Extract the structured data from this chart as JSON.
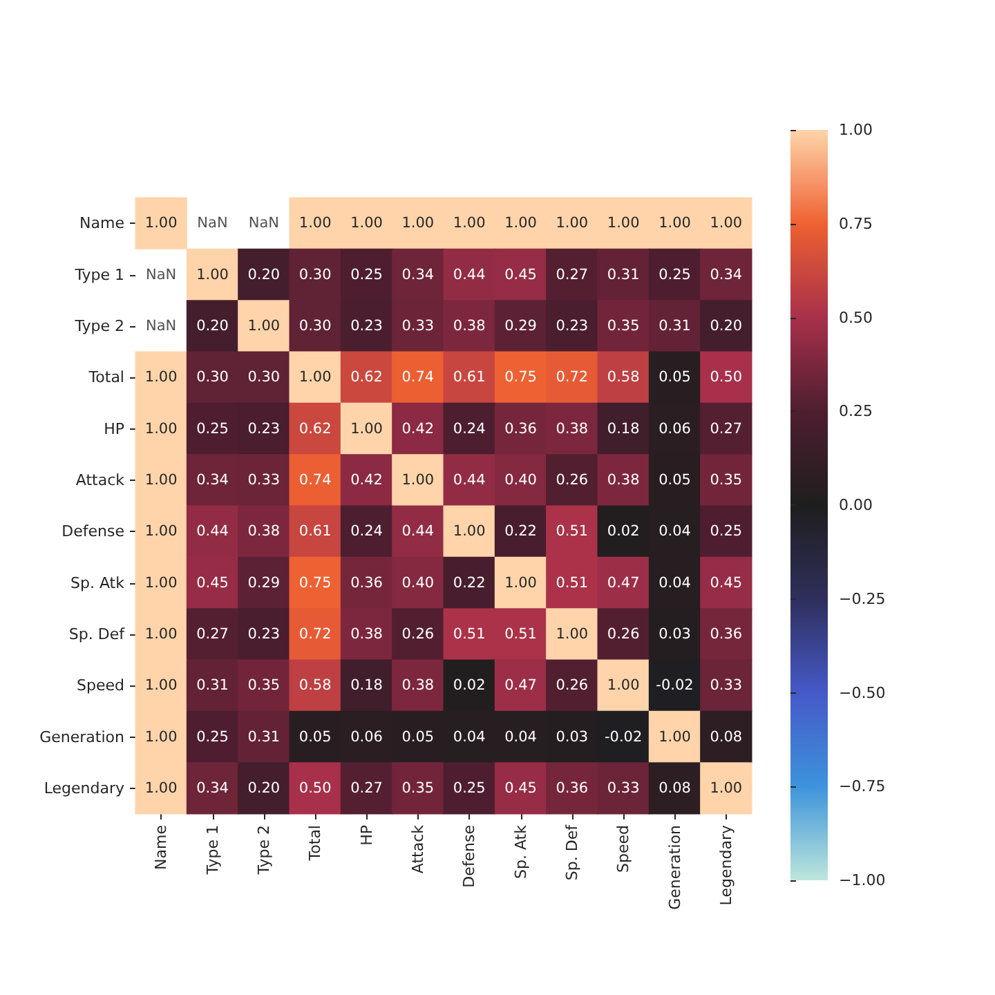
{
  "chart_data": {
    "type": "heatmap",
    "categories": [
      "Name",
      "Type 1",
      "Type 2",
      "Total",
      "HP",
      "Attack",
      "Defense",
      "Sp. Atk",
      "Sp. Def",
      "Speed",
      "Generation",
      "Legendary"
    ],
    "y_categories": [
      "Name",
      "Type 1",
      "Type 2",
      "Total",
      "HP",
      "Attack",
      "Defense",
      "Sp. Atk",
      "Sp. Def",
      "Speed",
      "Generation",
      "Legendary"
    ],
    "cells": [
      [
        1.0,
        null,
        null,
        1.0,
        1.0,
        1.0,
        1.0,
        1.0,
        1.0,
        1.0,
        1.0,
        1.0
      ],
      [
        null,
        1.0,
        0.2,
        0.3,
        0.25,
        0.34,
        0.44,
        0.45,
        0.27,
        0.31,
        0.25,
        0.34
      ],
      [
        null,
        0.2,
        1.0,
        0.3,
        0.23,
        0.33,
        0.38,
        0.29,
        0.23,
        0.35,
        0.31,
        0.2
      ],
      [
        1.0,
        0.3,
        0.3,
        1.0,
        0.62,
        0.74,
        0.61,
        0.75,
        0.72,
        0.58,
        0.05,
        0.5
      ],
      [
        1.0,
        0.25,
        0.23,
        0.62,
        1.0,
        0.42,
        0.24,
        0.36,
        0.38,
        0.18,
        0.06,
        0.27
      ],
      [
        1.0,
        0.34,
        0.33,
        0.74,
        0.42,
        1.0,
        0.44,
        0.4,
        0.26,
        0.38,
        0.05,
        0.35
      ],
      [
        1.0,
        0.44,
        0.38,
        0.61,
        0.24,
        0.44,
        1.0,
        0.22,
        0.51,
        0.02,
        0.04,
        0.25
      ],
      [
        1.0,
        0.45,
        0.29,
        0.75,
        0.36,
        0.4,
        0.22,
        1.0,
        0.51,
        0.47,
        0.04,
        0.45
      ],
      [
        1.0,
        0.27,
        0.23,
        0.72,
        0.38,
        0.26,
        0.51,
        0.51,
        1.0,
        0.26,
        0.03,
        0.36
      ],
      [
        1.0,
        0.31,
        0.35,
        0.58,
        0.18,
        0.38,
        0.02,
        0.47,
        0.26,
        1.0,
        -0.02,
        0.33
      ],
      [
        1.0,
        0.25,
        0.31,
        0.05,
        0.06,
        0.05,
        0.04,
        0.04,
        0.03,
        -0.02,
        1.0,
        0.08
      ],
      [
        1.0,
        0.34,
        0.2,
        0.5,
        0.27,
        0.35,
        0.25,
        0.45,
        0.36,
        0.33,
        0.08,
        1.0
      ]
    ],
    "cell_labels": [
      [
        "1.00",
        "NaN",
        "NaN",
        "1.00",
        "1.00",
        "1.00",
        "1.00",
        "1.00",
        "1.00",
        "1.00",
        "1.00",
        "1.00"
      ],
      [
        "NaN",
        "1.00",
        "0.20",
        "0.30",
        "0.25",
        "0.34",
        "0.44",
        "0.45",
        "0.27",
        "0.31",
        "0.25",
        "0.34"
      ],
      [
        "NaN",
        "0.20",
        "1.00",
        "0.30",
        "0.23",
        "0.33",
        "0.38",
        "0.29",
        "0.23",
        "0.35",
        "0.31",
        "0.20"
      ],
      [
        "1.00",
        "0.30",
        "0.30",
        "1.00",
        "0.62",
        "0.74",
        "0.61",
        "0.75",
        "0.72",
        "0.58",
        "0.05",
        "0.50"
      ],
      [
        "1.00",
        "0.25",
        "0.23",
        "0.62",
        "1.00",
        "0.42",
        "0.24",
        "0.36",
        "0.38",
        "0.18",
        "0.06",
        "0.27"
      ],
      [
        "1.00",
        "0.34",
        "0.33",
        "0.74",
        "0.42",
        "1.00",
        "0.44",
        "0.40",
        "0.26",
        "0.38",
        "0.05",
        "0.35"
      ],
      [
        "1.00",
        "0.44",
        "0.38",
        "0.61",
        "0.24",
        "0.44",
        "1.00",
        "0.22",
        "0.51",
        "0.02",
        "0.04",
        "0.25"
      ],
      [
        "1.00",
        "0.45",
        "0.29",
        "0.75",
        "0.36",
        "0.40",
        "0.22",
        "1.00",
        "0.51",
        "0.47",
        "0.04",
        "0.45"
      ],
      [
        "1.00",
        "0.27",
        "0.23",
        "0.72",
        "0.38",
        "0.26",
        "0.51",
        "0.51",
        "1.00",
        "0.26",
        "0.03",
        "0.36"
      ],
      [
        "1.00",
        "0.31",
        "0.35",
        "0.58",
        "0.18",
        "0.38",
        "0.02",
        "0.47",
        "0.26",
        "1.00",
        "-0.02",
        "0.33"
      ],
      [
        "1.00",
        "0.25",
        "0.31",
        "0.05",
        "0.06",
        "0.05",
        "0.04",
        "0.04",
        "0.03",
        "-0.02",
        "1.00",
        "0.08"
      ],
      [
        "1.00",
        "0.34",
        "0.20",
        "0.50",
        "0.27",
        "0.35",
        "0.25",
        "0.45",
        "0.36",
        "0.33",
        "0.08",
        "1.00"
      ]
    ],
    "clim": [
      -1,
      1
    ],
    "cticks": [
      {
        "value": -1,
        "label": "−1.00"
      },
      {
        "value": -0.75,
        "label": "−0.75"
      },
      {
        "value": -0.5,
        "label": "−0.50"
      },
      {
        "value": -0.25,
        "label": "−0.25"
      },
      {
        "value": 0,
        "label": "0.00"
      },
      {
        "value": 0.25,
        "label": "0.25"
      },
      {
        "value": 0.5,
        "label": "0.50"
      },
      {
        "value": 0.75,
        "label": "0.75"
      },
      {
        "value": 1,
        "label": "1.00"
      }
    ]
  }
}
